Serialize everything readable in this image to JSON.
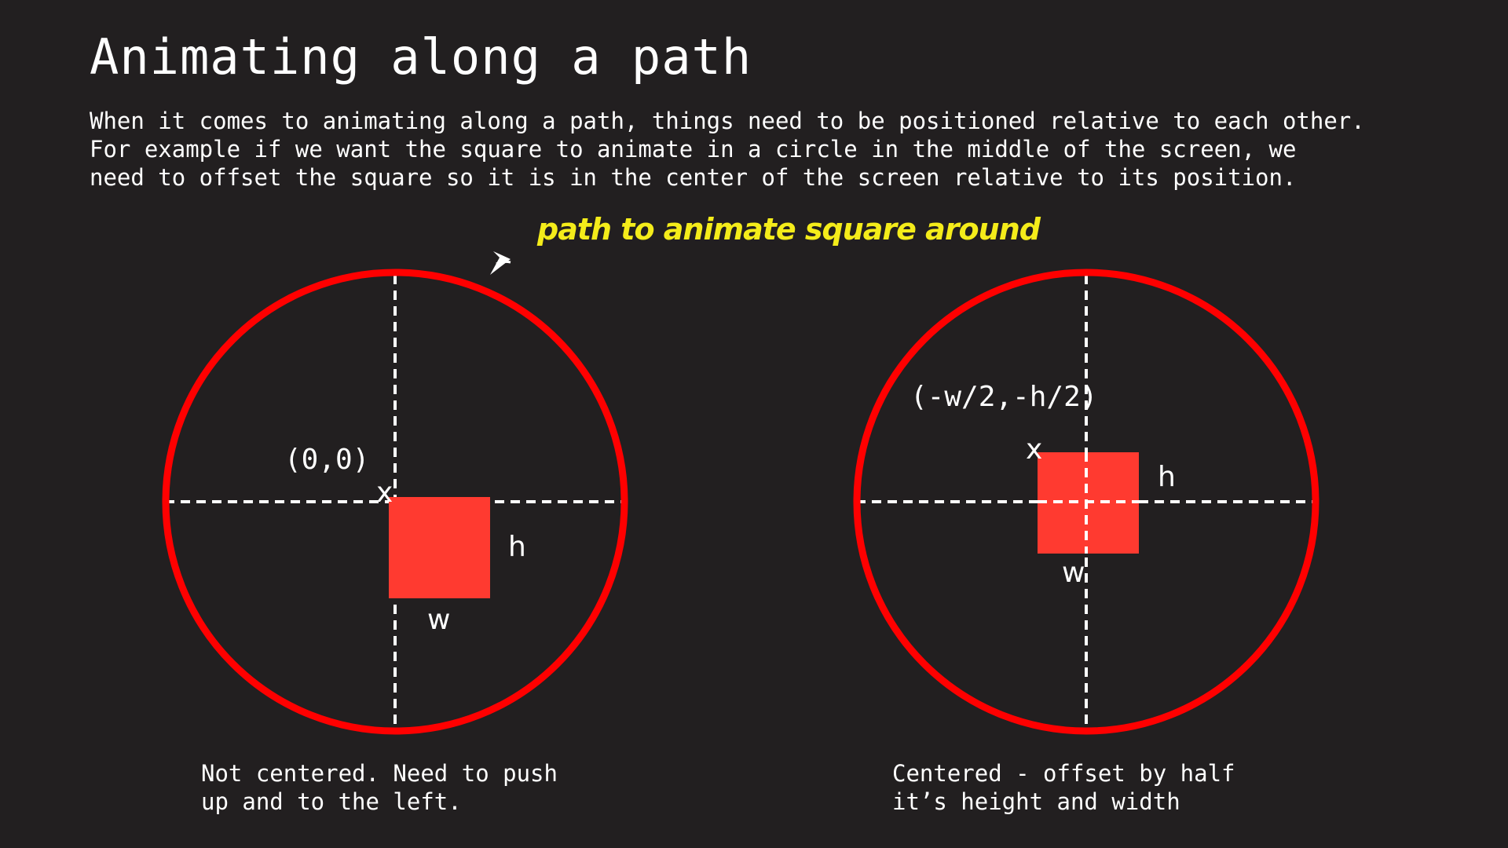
{
  "title": "Animating along a path",
  "intro": [
    "When it comes to animating along a path, things need to be positioned relative to each other.",
    "For example if we want the square to animate in a circle in the middle of the screen, we",
    "need to offset the square so it is in the center of the screen relative to its position."
  ],
  "annotation": "path to animate square around",
  "left_diagram": {
    "origin_label": "(0,0)",
    "origin_marker": "x",
    "height_label": "h",
    "width_label": "w",
    "caption": [
      "Not centered. Need to push",
      "up and to the left."
    ]
  },
  "right_diagram": {
    "origin_label": "(-w/2,-h/2)",
    "origin_marker": "x",
    "height_label": "h",
    "width_label": "w",
    "caption": [
      "Centered - offset by half",
      "it’s height and width"
    ]
  },
  "colors": {
    "background": "#221f20",
    "circle": "#ff0000",
    "square": "#ff3a30",
    "axis": "#ffffff",
    "annotation": "#f4ec1a"
  }
}
